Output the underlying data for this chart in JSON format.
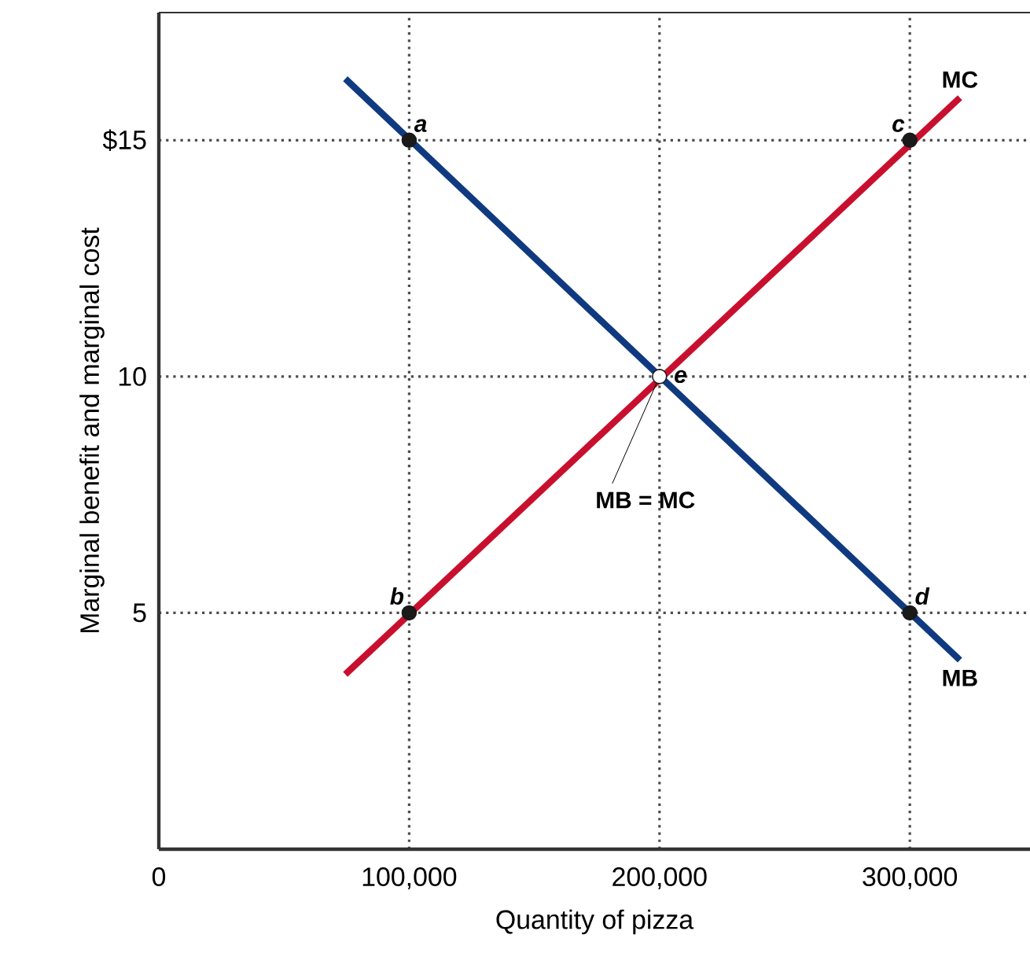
{
  "chart_data": {
    "type": "line",
    "xlabel": "Quantity of pizza",
    "ylabel": "Marginal benefit and marginal cost",
    "xlim": [
      0,
      348000
    ],
    "ylim": [
      0,
      17.7
    ],
    "xticks": [
      {
        "value": 0,
        "label": "0"
      },
      {
        "value": 100000,
        "label": "100,000"
      },
      {
        "value": 200000,
        "label": "200,000"
      },
      {
        "value": 300000,
        "label": "300,000"
      }
    ],
    "yticks": [
      {
        "value": 5,
        "label": "5"
      },
      {
        "value": 10,
        "label": "10"
      },
      {
        "value": 15,
        "label": "$15"
      }
    ],
    "grid": true,
    "series": [
      {
        "name": "MB",
        "color": "#103a80",
        "marker": "none",
        "x": [
          74500,
          320000
        ],
        "values": [
          16.3,
          4.0
        ]
      },
      {
        "name": "MC",
        "color": "#c8102e",
        "marker": "none",
        "x": [
          74500,
          320000
        ],
        "values": [
          3.7,
          15.9
        ]
      },
      {
        "type": "scatter",
        "marker": "circle",
        "colors": [
          "#1a1a1a",
          "#1a1a1a",
          "#1a1a1a",
          "#1a1a1a",
          "#ffffff"
        ],
        "x": [
          100000,
          100000,
          300000,
          300000,
          200000
        ],
        "values": [
          15,
          5,
          15,
          5,
          10
        ]
      }
    ],
    "annotations": [
      {
        "text": "a",
        "x": 100000,
        "y": 15
      },
      {
        "text": "b",
        "x": 100000,
        "y": 5
      },
      {
        "text": "c",
        "x": 300000,
        "y": 15
      },
      {
        "text": "d",
        "x": 300000,
        "y": 5
      },
      {
        "text": "e",
        "x": 200000,
        "y": 10
      },
      {
        "text": "MB = MC",
        "x": 200000,
        "y": 10
      }
    ]
  }
}
